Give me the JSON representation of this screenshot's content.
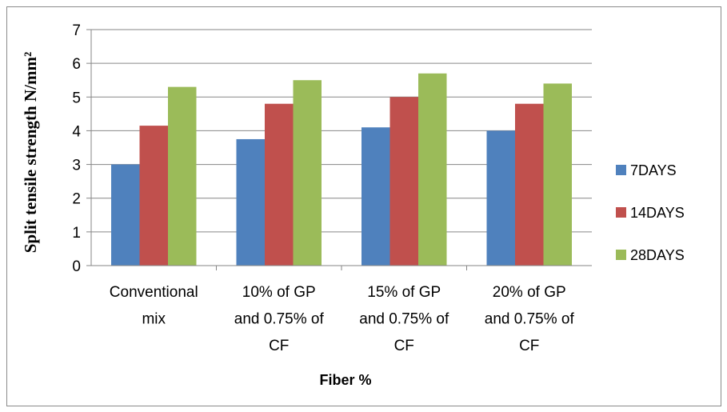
{
  "chart_data": {
    "type": "bar",
    "title": "",
    "xlabel": "Fiber %",
    "ylabel": "Split tensile strength N/mm²",
    "ylim": [
      0,
      7
    ],
    "yticks": [
      0,
      1,
      2,
      3,
      4,
      5,
      6,
      7
    ],
    "grid": true,
    "legend_position": "right",
    "categories": [
      [
        "Conventional",
        "mix"
      ],
      [
        "10% of GP",
        "and 0.75% of",
        "CF"
      ],
      [
        "15% of GP",
        "and 0.75% of",
        "CF"
      ],
      [
        "20% of GP",
        "and 0.75% of",
        "CF"
      ]
    ],
    "series": [
      {
        "name": "7DAYS",
        "color": "#4F81BD",
        "values": [
          3.0,
          3.75,
          4.1,
          4.0
        ]
      },
      {
        "name": "14DAYS",
        "color": "#C0504D",
        "values": [
          4.15,
          4.8,
          5.0,
          4.8
        ]
      },
      {
        "name": "28DAYS",
        "color": "#9BBB59",
        "values": [
          5.3,
          5.5,
          5.7,
          5.4
        ]
      }
    ]
  }
}
